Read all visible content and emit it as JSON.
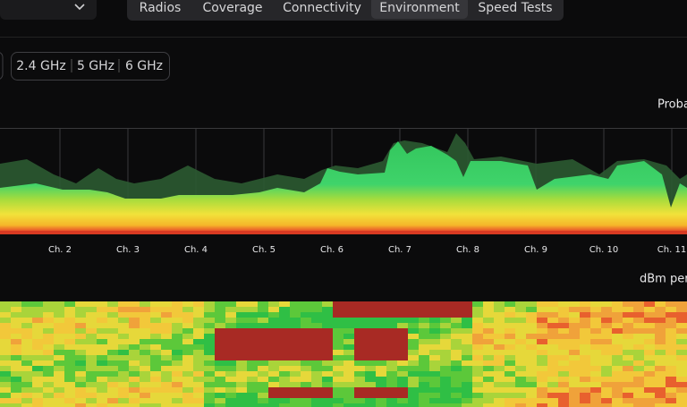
{
  "tabs": [
    "Radios",
    "Coverage",
    "Connectivity",
    "Environment",
    "Speed Tests"
  ],
  "active_tab": "Environment",
  "bands": [
    "2.4 GHz",
    "5 GHz",
    "6 GHz"
  ],
  "active_band": "2.4 GHz",
  "spectrum": {
    "label": "Proba",
    "channels": [
      "Ch. 2",
      "Ch. 3",
      "Ch. 4",
      "Ch. 5",
      "Ch. 6",
      "Ch. 7",
      "Ch. 8",
      "Ch. 9",
      "Ch. 10",
      "Ch. 11"
    ]
  },
  "waterfall": {
    "label": "dBm per"
  }
}
